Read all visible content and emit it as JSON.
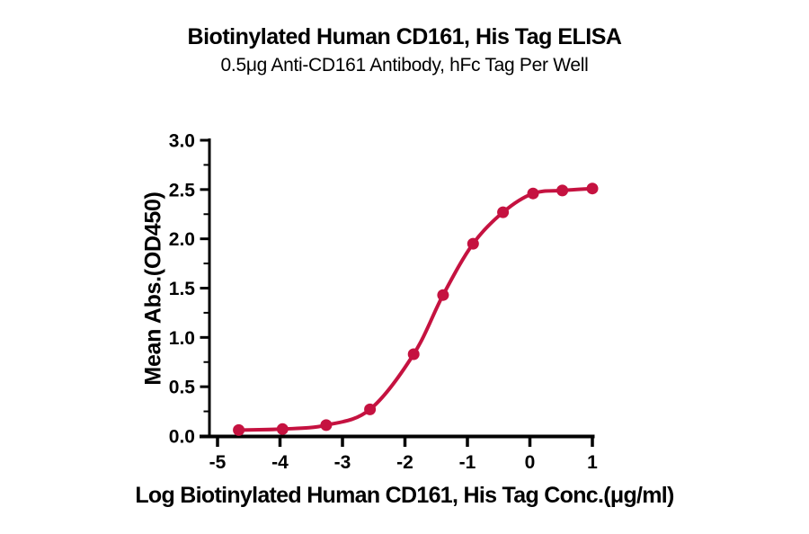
{
  "chart_data": {
    "type": "line",
    "subtype": "sigmoidal dose-response (ELISA binding curve)",
    "title": "Biotinylated Human CD161, His Tag ELISA",
    "subtitle": "0.5μg Anti-CD161 Antibody, hFc Tag Per Well",
    "xlabel": "Log Biotinylated Human CD161, His Tag Conc.(μg/ml)",
    "ylabel": "Mean Abs.(OD450)",
    "x": [
      -4.66,
      -3.96,
      -3.26,
      -2.56,
      -1.86,
      -1.39,
      -0.91,
      -0.43,
      0.05,
      0.52,
      1.0
    ],
    "y": [
      0.06,
      0.07,
      0.11,
      0.27,
      0.83,
      1.43,
      1.95,
      2.27,
      2.46,
      2.49,
      2.51
    ],
    "x_ticks": [
      -5,
      -4,
      -3,
      -2,
      -1,
      0,
      1
    ],
    "x_tick_labels": [
      "-5",
      "-4",
      "-3",
      "-2",
      "-1",
      "0",
      "1"
    ],
    "y_ticks": [
      0,
      0.5,
      1.0,
      1.5,
      2.0,
      2.5,
      3.0
    ],
    "y_tick_labels": [
      "0.0",
      "0.5",
      "1.0",
      "1.5",
      "2.0",
      "2.5",
      "3.0"
    ],
    "y_minor_ticks": [
      0.25,
      0.75,
      1.25,
      1.75,
      2.25,
      2.75
    ],
    "xlim": [
      -5.15,
      1.05
    ],
    "ylim": [
      0,
      3.0
    ],
    "grid": false,
    "legend_position": "none",
    "marker": "filled-circle",
    "colors": {
      "curve": "#C51240",
      "axis": "#000000",
      "text": "#000000",
      "background": "#FFFFFF"
    }
  }
}
